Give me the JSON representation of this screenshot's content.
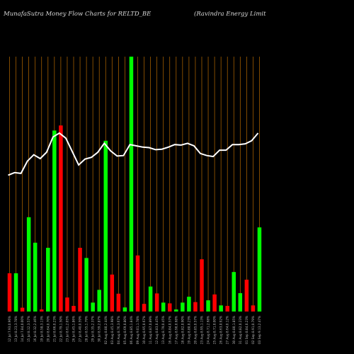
{
  "title_left": "MunafaSutra  Money Flow  Charts for RELTD_BE",
  "title_right": "(Ravindra  Energy Limit",
  "colors": {
    "background": "#000000",
    "grid": "#b86a00",
    "up": "#00ff00",
    "down": "#ff0000",
    "line": "#ffffff",
    "label": "#bdbdbd"
  },
  "chart_data": {
    "type": "bar",
    "ylim": [
      0,
      1
    ],
    "line_ylim": [
      0,
      1
    ],
    "categories": [
      "12 Jul 7.93,0.96%",
      "13 Jul 8.23,3.78%",
      "14 Jul 7.84,0.00%",
      "15 Jul 8.12,3.57%",
      "16 Jul 8.32,2.46%",
      "19 Jul 8.58,3.13%",
      "20 Jul 8.64,0.70%",
      "21 Jul 8.66,0.23%",
      "22 Jul 8.79,1.50%",
      "23 Jul 8.61,2.05%",
      "26 Jul 8.45,1.86%",
      "27 Jul 8.40,0.59%",
      "28 Jul 8.55,1.79%",
      "29 Jul 8.35,2.37%",
      "30 Jul 8.59,2.87%",
      "02 Aug 8.80,2.44%",
      "03 Aug 8.45,3.98%",
      "04 Aug 8.76,3.67%",
      "05 Aug 8.69,0.80%",
      "06 Aug 8.85,1.84%",
      "09 Aug 9.01,1.78%",
      "10 Aug 8.95,0.67%",
      "11 Aug 8.87,0.89%",
      "12 Aug 8.83,0.45%",
      "13 Aug 8.79,0.45%",
      "16 Aug 8.84,0.57%",
      "17 Aug 8.90,0.68%",
      "18 Aug 8.82,0.90%",
      "19 Aug 8.80,0.23%",
      "20 Aug 8.85,0.57%",
      "23 Aug 8.95,1.13%",
      "24 Aug 8.71,2.68%",
      "25 Aug 8.71,0.00%",
      "26 Aug 8.63,0.92%",
      "27 Aug 8.64,0.12%",
      "30 Aug 8.80,1.85%",
      "31 Aug 8.82,0.23%",
      "01 Sep 8.84,0.23%",
      "02 Sep 8.91,0.79%",
      "03 Sep 9.13,2.47%"
    ],
    "series": [
      {
        "type": "bar",
        "values": [
          0.15,
          0.15,
          0.015,
          0.37,
          0.27,
          0.008,
          0.25,
          0.71,
          0.73,
          0.055,
          0.022,
          0.25,
          0.21,
          0.035,
          0.085,
          0.67,
          0.145,
          0.07,
          0.016,
          1.0,
          0.22,
          0.03,
          0.098,
          0.071,
          0.035,
          0.032,
          0.008,
          0.035,
          0.058,
          0.037,
          0.205,
          0.044,
          0.067,
          0.024,
          0.022,
          0.155,
          0.072,
          0.125,
          0.024,
          0.33
        ],
        "direction": [
          "down",
          "up",
          "down",
          "up",
          "up",
          "down",
          "up",
          "up",
          "down",
          "down",
          "down",
          "down",
          "up",
          "up",
          "up",
          "up",
          "down",
          "down",
          "up",
          "up",
          "down",
          "down",
          "up",
          "down",
          "up",
          "down",
          "up",
          "up",
          "up",
          "down",
          "down",
          "up",
          "down",
          "up",
          "down",
          "up",
          "up",
          "down",
          "down",
          "up"
        ]
      },
      {
        "type": "line",
        "values": [
          0.535,
          0.545,
          0.542,
          0.59,
          0.615,
          0.6,
          0.625,
          0.685,
          0.7,
          0.68,
          0.628,
          0.575,
          0.598,
          0.605,
          0.625,
          0.66,
          0.63,
          0.61,
          0.612,
          0.655,
          0.65,
          0.645,
          0.643,
          0.635,
          0.637,
          0.645,
          0.655,
          0.653,
          0.66,
          0.65,
          0.62,
          0.612,
          0.608,
          0.633,
          0.633,
          0.655,
          0.655,
          0.658,
          0.67,
          0.7
        ]
      }
    ]
  }
}
